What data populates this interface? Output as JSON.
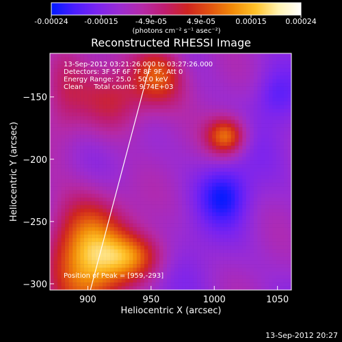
{
  "colorbar": {
    "ticks": [
      "-0.00024",
      "-0.00015",
      "-4.9e-05",
      "4.9e-05",
      "0.00015",
      "0.00024"
    ],
    "unit_label": "(photons cm⁻² s⁻¹ asec⁻²)",
    "range": [
      -0.00024,
      0.00024
    ],
    "colors": [
      "#001aff",
      "#4a1dff",
      "#7a24f0",
      "#9b2cd2",
      "#b52aa8",
      "#c01d6f",
      "#cf2420",
      "#e25310",
      "#f28b08",
      "#ffc229",
      "#fff3b0",
      "#ffffff"
    ]
  },
  "chart_data": {
    "type": "heatmap",
    "title": "Reconstructed RHESSI Image",
    "xlabel": "Heliocentric X (arcsec)",
    "ylabel": "Heliocentric Y (arcsec)",
    "x_ticks": [
      900,
      950,
      1000,
      1050
    ],
    "y_ticks": [
      -150,
      -200,
      -250,
      -300
    ],
    "xlim": [
      870,
      1061
    ],
    "ylim": [
      -305,
      -115
    ],
    "grid": false,
    "annotations": [
      "13-Sep-2012 03:21:26.000 to 03:27:26.000",
      "Detectors: 3F 5F 6F 7F 8F 9F, Att 0",
      "Energy Range: 25.0 - 50.0 keV",
      "Clean     Total counts: 9.74E+03",
      "Position of Peak = [959,-293]"
    ],
    "overlay_limb_line": {
      "x": [
        902,
        949
      ],
      "y": [
        -305,
        -125
      ]
    }
  },
  "footer": {
    "timestamp": "13-Sep-2012 20:27"
  }
}
